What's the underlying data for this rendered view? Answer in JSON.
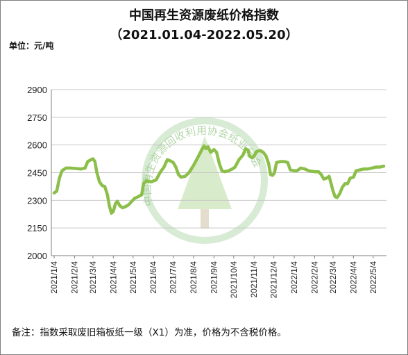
{
  "title": "中国再生资源废纸价格指数",
  "subtitle": "（2021.01.04-2022.05.20）",
  "unit": "单位：元/吨",
  "note": "备注：指数采取废旧箱板纸一级（X1）为准，价格为不含税价格。",
  "watermark": "中国再生资源回收利用协会纸业分会",
  "colors": {
    "line": "#8cbf4a",
    "grid": "#c8c8c8",
    "axis": "#7f7f7f",
    "watermark": "#8fc784"
  },
  "chart_data": {
    "type": "line",
    "title": "中国再生资源废纸价格指数",
    "ylabel": "单位：元/吨",
    "xlabel": "",
    "ylim": [
      2000,
      2900
    ],
    "yticks": [
      2000,
      2150,
      2300,
      2450,
      2600,
      2750,
      2900
    ],
    "x_tick_labels": [
      "2021/1/4",
      "2021/2/4",
      "2021/3/4",
      "2021/4/4",
      "2021/5/4",
      "2021/6/4",
      "2021/7/4",
      "2021/8/4",
      "2021/9/4",
      "2021/10/4",
      "2021/11/4",
      "2021/12/4",
      "2022/1/4",
      "2022/2/4",
      "2022/3/4",
      "2022/4/4",
      "2022/5/4"
    ],
    "grid": true,
    "legend": "none",
    "series": [
      {
        "points": [
          [
            "2021-01-04",
            2340
          ],
          [
            "2021-01-08",
            2350
          ],
          [
            "2021-01-12",
            2420
          ],
          [
            "2021-01-16",
            2460
          ],
          [
            "2021-01-22",
            2475
          ],
          [
            "2021-01-28",
            2475
          ],
          [
            "2021-02-04",
            2473
          ],
          [
            "2021-02-14",
            2470
          ],
          [
            "2021-02-20",
            2475
          ],
          [
            "2021-02-24",
            2510
          ],
          [
            "2021-03-01",
            2520
          ],
          [
            "2021-03-04",
            2525
          ],
          [
            "2021-03-07",
            2510
          ],
          [
            "2021-03-10",
            2450
          ],
          [
            "2021-03-14",
            2400
          ],
          [
            "2021-03-18",
            2380
          ],
          [
            "2021-03-22",
            2375
          ],
          [
            "2021-03-26",
            2330
          ],
          [
            "2021-03-29",
            2270
          ],
          [
            "2021-04-01",
            2230
          ],
          [
            "2021-04-04",
            2240
          ],
          [
            "2021-04-07",
            2280
          ],
          [
            "2021-04-10",
            2295
          ],
          [
            "2021-04-14",
            2270
          ],
          [
            "2021-04-18",
            2260
          ],
          [
            "2021-04-22",
            2265
          ],
          [
            "2021-04-27",
            2275
          ],
          [
            "2021-05-01",
            2290
          ],
          [
            "2021-05-06",
            2310
          ],
          [
            "2021-05-12",
            2320
          ],
          [
            "2021-05-17",
            2330
          ],
          [
            "2021-05-20",
            2390
          ],
          [
            "2021-05-24",
            2405
          ],
          [
            "2021-06-01",
            2400
          ],
          [
            "2021-06-04",
            2405
          ],
          [
            "2021-06-08",
            2410
          ],
          [
            "2021-06-14",
            2450
          ],
          [
            "2021-06-20",
            2480
          ],
          [
            "2021-06-25",
            2520
          ],
          [
            "2021-06-29",
            2515
          ],
          [
            "2021-07-04",
            2505
          ],
          [
            "2021-07-08",
            2480
          ],
          [
            "2021-07-12",
            2440
          ],
          [
            "2021-07-16",
            2425
          ],
          [
            "2021-07-22",
            2430
          ],
          [
            "2021-07-28",
            2450
          ],
          [
            "2021-08-04",
            2490
          ],
          [
            "2021-08-10",
            2530
          ],
          [
            "2021-08-16",
            2570
          ],
          [
            "2021-08-20",
            2595
          ],
          [
            "2021-08-23",
            2580
          ],
          [
            "2021-08-26",
            2590
          ],
          [
            "2021-08-30",
            2560
          ],
          [
            "2021-09-04",
            2575
          ],
          [
            "2021-09-08",
            2560
          ],
          [
            "2021-09-12",
            2500
          ],
          [
            "2021-09-16",
            2460
          ],
          [
            "2021-09-20",
            2455
          ],
          [
            "2021-09-26",
            2460
          ],
          [
            "2021-10-02",
            2470
          ],
          [
            "2021-10-06",
            2480
          ],
          [
            "2021-10-12",
            2520
          ],
          [
            "2021-10-18",
            2545
          ],
          [
            "2021-10-22",
            2580
          ],
          [
            "2021-10-26",
            2570
          ],
          [
            "2021-10-28",
            2540
          ],
          [
            "2021-11-01",
            2530
          ],
          [
            "2021-11-04",
            2540
          ],
          [
            "2021-11-08",
            2565
          ],
          [
            "2021-11-13",
            2570
          ],
          [
            "2021-11-18",
            2560
          ],
          [
            "2021-11-22",
            2540
          ],
          [
            "2021-11-26",
            2500
          ],
          [
            "2021-11-29",
            2440
          ],
          [
            "2021-12-02",
            2435
          ],
          [
            "2021-12-05",
            2450
          ],
          [
            "2021-12-08",
            2505
          ],
          [
            "2021-12-14",
            2510
          ],
          [
            "2021-12-20",
            2510
          ],
          [
            "2021-12-25",
            2505
          ],
          [
            "2021-12-29",
            2465
          ],
          [
            "2022-01-04",
            2460
          ],
          [
            "2022-01-08",
            2460
          ],
          [
            "2022-01-14",
            2475
          ],
          [
            "2022-01-20",
            2470
          ],
          [
            "2022-01-26",
            2460
          ],
          [
            "2022-02-04",
            2455
          ],
          [
            "2022-02-10",
            2455
          ],
          [
            "2022-02-14",
            2440
          ],
          [
            "2022-02-18",
            2415
          ],
          [
            "2022-02-22",
            2420
          ],
          [
            "2022-02-26",
            2430
          ],
          [
            "2022-03-01",
            2390
          ],
          [
            "2022-03-04",
            2350
          ],
          [
            "2022-03-07",
            2320
          ],
          [
            "2022-03-10",
            2315
          ],
          [
            "2022-03-14",
            2335
          ],
          [
            "2022-03-18",
            2370
          ],
          [
            "2022-03-22",
            2390
          ],
          [
            "2022-03-26",
            2390
          ],
          [
            "2022-03-30",
            2420
          ],
          [
            "2022-04-04",
            2425
          ],
          [
            "2022-04-08",
            2460
          ],
          [
            "2022-04-14",
            2465
          ],
          [
            "2022-04-20",
            2470
          ],
          [
            "2022-04-26",
            2470
          ],
          [
            "2022-05-02",
            2475
          ],
          [
            "2022-05-08",
            2480
          ],
          [
            "2022-05-14",
            2480
          ],
          [
            "2022-05-20",
            2485
          ]
        ]
      }
    ]
  }
}
